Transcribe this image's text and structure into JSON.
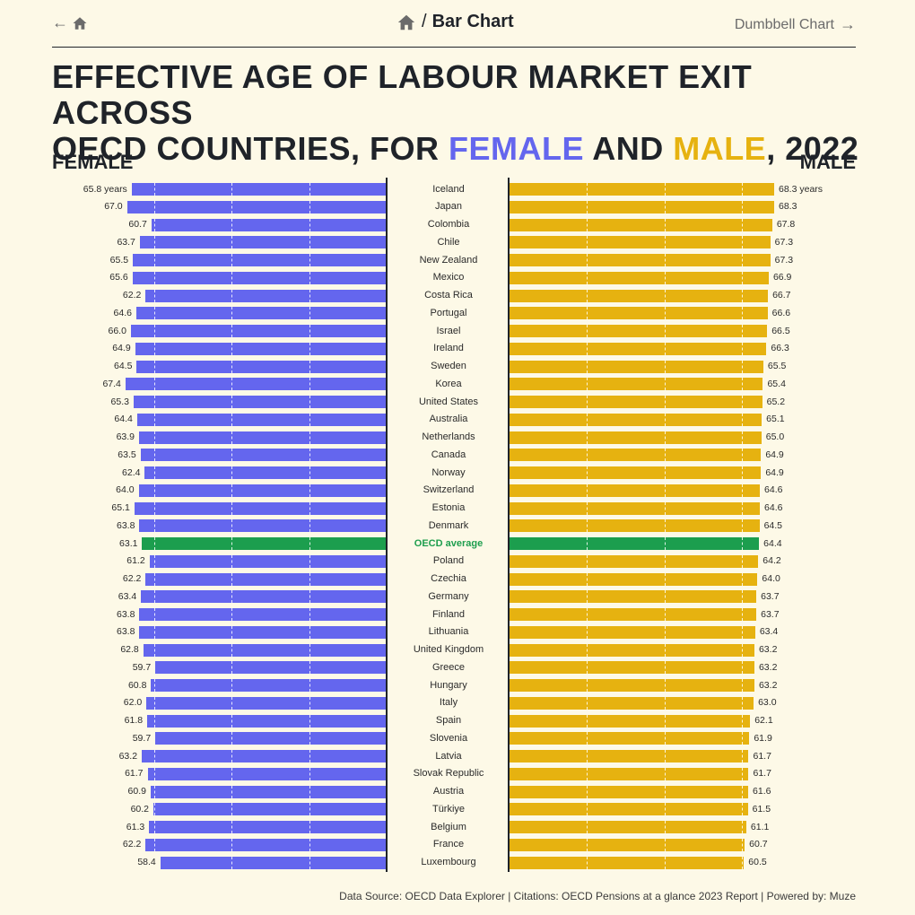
{
  "nav": {
    "back_arrow": "←",
    "home_icon": "home-icon",
    "slash": "/",
    "current": "Bar Chart",
    "next_label": "Dumbbell Chart",
    "next_arrow": "→"
  },
  "title": {
    "line1": "EFFECTIVE AGE OF LABOUR MARKET EXIT ACROSS",
    "line2_prefix": "OECD COUNTRIES, FOR ",
    "female": "FEMALE",
    "and": " AND ",
    "male": "MALE",
    "line2_suffix": ", 2022"
  },
  "labels": {
    "female": "FEMALE",
    "male": "MALE"
  },
  "footer": "Data Source: OECD Data Explorer | Citations: OECD Pensions at a glance 2023 Report | Powered by: Muze",
  "colors": {
    "female": "#6466ee",
    "male": "#e6b210",
    "average": "#1c9e4e",
    "background": "#fdf9e7"
  },
  "chart_data": {
    "type": "bar",
    "unit": "years",
    "categories": [
      "Iceland",
      "Japan",
      "Colombia",
      "Chile",
      "New Zealand",
      "Mexico",
      "Costa Rica",
      "Portugal",
      "Israel",
      "Ireland",
      "Sweden",
      "Korea",
      "United States",
      "Australia",
      "Netherlands",
      "Canada",
      "Norway",
      "Switzerland",
      "Estonia",
      "Denmark",
      "OECD average",
      "Poland",
      "Czechia",
      "Germany",
      "Finland",
      "Lithuania",
      "United Kingdom",
      "Greece",
      "Hungary",
      "Italy",
      "Spain",
      "Slovenia",
      "Latvia",
      "Slovak Republic",
      "Austria",
      "Türkiye",
      "Belgium",
      "France",
      "Luxembourg"
    ],
    "highlight": "OECD average",
    "series": [
      {
        "name": "FEMALE",
        "values": [
          65.8,
          67.0,
          60.7,
          63.7,
          65.5,
          65.6,
          62.2,
          64.6,
          66.0,
          64.9,
          64.5,
          67.4,
          65.3,
          64.4,
          63.9,
          63.5,
          62.4,
          64.0,
          65.1,
          63.8,
          63.1,
          61.2,
          62.2,
          63.4,
          63.8,
          63.8,
          62.8,
          59.7,
          60.8,
          62.0,
          61.8,
          59.7,
          63.2,
          61.7,
          60.9,
          60.2,
          61.3,
          62.2,
          58.4
        ]
      },
      {
        "name": "MALE",
        "values": [
          68.3,
          68.3,
          67.8,
          67.3,
          67.3,
          66.9,
          66.7,
          66.6,
          66.5,
          66.3,
          65.5,
          65.4,
          65.2,
          65.1,
          65.0,
          64.9,
          64.9,
          64.6,
          64.6,
          64.5,
          64.4,
          64.2,
          64.0,
          63.7,
          63.7,
          63.4,
          63.2,
          63.2,
          63.2,
          63.0,
          62.1,
          61.9,
          61.7,
          61.7,
          61.6,
          61.5,
          61.1,
          60.7,
          60.5
        ]
      }
    ],
    "value_labels_female": [
      "65.8 years",
      "67.0",
      "60.7",
      "63.7",
      "65.5",
      "65.6",
      "62.2",
      "64.6",
      "66.0",
      "64.9",
      "64.5",
      "67.4",
      "65.3",
      "64.4",
      "63.9",
      "63.5",
      "62.4",
      "64.0",
      "65.1",
      "63.8",
      "63.1",
      "61.2",
      "62.2",
      "63.4",
      "63.8",
      "63.8",
      "62.8",
      "59.7",
      "60.8",
      "62.0",
      "61.8",
      "59.7",
      "63.2",
      "61.7",
      "60.9",
      "60.2",
      "61.3",
      "62.2",
      "58.4"
    ],
    "value_labels_male": [
      "68.3 years",
      "68.3",
      "67.8",
      "67.3",
      "67.3",
      "66.9",
      "66.7",
      "66.6",
      "66.5",
      "66.3",
      "65.5",
      "65.4",
      "65.2",
      "65.1",
      "65.0",
      "64.9",
      "64.9",
      "64.6",
      "64.6",
      "64.5",
      "64.4",
      "64.2",
      "64.0",
      "63.7",
      "63.7",
      "63.4",
      "63.2",
      "63.2",
      "63.2",
      "63.0",
      "62.1",
      "61.9",
      "61.7",
      "61.7",
      "61.6",
      "61.5",
      "61.1",
      "60.7",
      "60.5"
    ],
    "gridlines": [
      20,
      40,
      60
    ],
    "axis_min": 0,
    "axis_max": 68.3
  }
}
